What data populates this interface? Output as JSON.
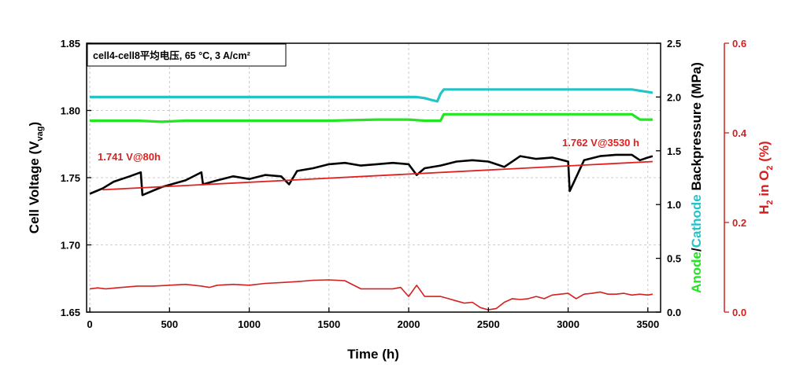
{
  "chart_data": {
    "type": "line",
    "title_box": "cell4-cell8平均电压, 65 °C, 3 A/cm²",
    "xlabel": "Time (h)",
    "xlim": [
      -20,
      3580
    ],
    "xticks": [
      "0",
      "500",
      "1000",
      "1500",
      "2000",
      "2500",
      "3000",
      "3500"
    ],
    "y_left": {
      "label": "Cell Voltage (V",
      "label_sub": "vag",
      "label_end": ")",
      "range": [
        1.65,
        1.85
      ],
      "ticks": [
        "1.65",
        "1.70",
        "1.75",
        "1.80",
        "1.85"
      ]
    },
    "y_right1": {
      "label_anode": "Anode",
      "label_sep": "/",
      "label_cathode": "Cathode",
      "label_rest": " Backpressure (MPa)",
      "range": [
        0.0,
        2.5
      ],
      "ticks": [
        "0.0",
        "0.5",
        "1.0",
        "1.5",
        "2.0",
        "2.5"
      ]
    },
    "y_right2": {
      "label": "H",
      "label_sub1": "2",
      "label_mid": " in O",
      "label_sub2": "2",
      "label_end": " (%)",
      "range": [
        0.0,
        0.6
      ],
      "ticks": [
        "0.0",
        "0.2",
        "0.4",
        "0.6"
      ]
    },
    "series": [
      {
        "axis": "y_right1",
        "color": "#22c4c8",
        "x": [
          0,
          200,
          500,
          800,
          1100,
          1400,
          1700,
          1950,
          2050,
          2100,
          2150,
          2180,
          2200,
          2220,
          2500,
          2800,
          3100,
          3400,
          3530
        ],
        "y": [
          2.0,
          2.0,
          2.0,
          2.0,
          2.0,
          2.0,
          2.0,
          2.0,
          2.0,
          1.99,
          1.97,
          1.96,
          2.03,
          2.07,
          2.07,
          2.07,
          2.07,
          2.07,
          2.04
        ]
      },
      {
        "axis": "y_right1",
        "color": "#22e622",
        "x": [
          0,
          300,
          450,
          600,
          900,
          1200,
          1500,
          1800,
          2000,
          2100,
          2200,
          2220,
          2500,
          2800,
          3100,
          3400,
          3450,
          3530
        ],
        "y": [
          1.78,
          1.78,
          1.77,
          1.78,
          1.78,
          1.78,
          1.78,
          1.79,
          1.79,
          1.78,
          1.78,
          1.84,
          1.84,
          1.84,
          1.84,
          1.84,
          1.79,
          1.79
        ]
      },
      {
        "axis": "y_left",
        "color": "#000000",
        "x": [
          0,
          80,
          150,
          250,
          320,
          330,
          450,
          600,
          700,
          710,
          800,
          900,
          1000,
          1100,
          1200,
          1250,
          1300,
          1400,
          1500,
          1600,
          1700,
          1800,
          1900,
          2000,
          2050,
          2100,
          2200,
          2300,
          2400,
          2500,
          2600,
          2700,
          2800,
          2900,
          3000,
          3010,
          3100,
          3200,
          3300,
          3400,
          3450,
          3500,
          3530
        ],
        "y": [
          1.738,
          1.742,
          1.747,
          1.751,
          1.754,
          1.737,
          1.743,
          1.748,
          1.754,
          1.745,
          1.748,
          1.751,
          1.749,
          1.752,
          1.751,
          1.745,
          1.755,
          1.757,
          1.76,
          1.761,
          1.759,
          1.76,
          1.761,
          1.76,
          1.752,
          1.757,
          1.759,
          1.762,
          1.763,
          1.762,
          1.758,
          1.766,
          1.764,
          1.765,
          1.762,
          1.74,
          1.763,
          1.766,
          1.767,
          1.767,
          1.763,
          1.765,
          1.766
        ]
      },
      {
        "axis": "y_left",
        "color": "#e02020",
        "x": [
          80,
          3530
        ],
        "y": [
          1.741,
          1.762
        ]
      },
      {
        "axis": "y_right2",
        "color": "#d42020",
        "x": [
          0,
          50,
          100,
          200,
          300,
          400,
          500,
          600,
          700,
          750,
          800,
          900,
          1000,
          1100,
          1200,
          1300,
          1400,
          1500,
          1600,
          1700,
          1800,
          1900,
          1950,
          2000,
          2050,
          2100,
          2150,
          2200,
          2250,
          2300,
          2350,
          2400,
          2450,
          2500,
          2550,
          2600,
          2650,
          2700,
          2750,
          2800,
          2850,
          2900,
          2950,
          3000,
          3050,
          3100,
          3150,
          3200,
          3250,
          3300,
          3350,
          3400,
          3450,
          3500,
          3530
        ],
        "y": [
          0.052,
          0.054,
          0.052,
          0.055,
          0.058,
          0.058,
          0.06,
          0.062,
          0.058,
          0.055,
          0.06,
          0.062,
          0.06,
          0.064,
          0.066,
          0.068,
          0.071,
          0.072,
          0.07,
          0.052,
          0.052,
          0.052,
          0.055,
          0.035,
          0.06,
          0.035,
          0.035,
          0.035,
          0.03,
          0.025,
          0.02,
          0.022,
          0.01,
          0.005,
          0.008,
          0.022,
          0.03,
          0.028,
          0.03,
          0.035,
          0.03,
          0.038,
          0.04,
          0.042,
          0.03,
          0.04,
          0.042,
          0.045,
          0.04,
          0.04,
          0.042,
          0.038,
          0.04,
          0.038,
          0.04
        ]
      }
    ],
    "annotations": [
      {
        "text": "1.741 V@80h",
        "color": "#e02020"
      },
      {
        "text": "1.762 V@3530 h",
        "color": "#e02020"
      }
    ],
    "colors": {
      "cathode_backpressure": "#22c4c8",
      "anode_backpressure": "#22e622",
      "voltage": "#000000",
      "fit": "#e02020",
      "h2_in_o2": "#d42020"
    }
  }
}
